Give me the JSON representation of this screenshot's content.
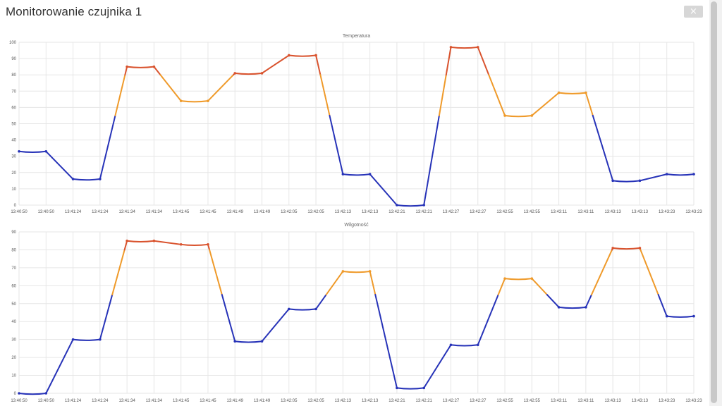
{
  "window": {
    "title": "Monitorowanie czujnika 1",
    "close_label": "×"
  },
  "colors": {
    "low": "#2733b8",
    "mid": "#ef9a2a",
    "high": "#d9532e",
    "grid": "#e6e6e6"
  },
  "chart_data": [
    {
      "type": "line",
      "title": "Temperatura",
      "ylim": [
        0,
        100
      ],
      "yticks": [
        0,
        10,
        20,
        30,
        40,
        50,
        60,
        70,
        80,
        90,
        100
      ],
      "grid": true,
      "categories": [
        "13:40:50",
        "13:40:50",
        "13:41:24",
        "13:41:24",
        "13:41:34",
        "13:41:34",
        "13:41:45",
        "13:41:45",
        "13:41:49",
        "13:41:49",
        "13:42:05",
        "13:42:05",
        "13:42:13",
        "13:42:13",
        "13:42:21",
        "13:42:21",
        "13:42:27",
        "13:42:27",
        "13:42:55",
        "13:42:55",
        "13:43:11",
        "13:43:11",
        "13:43:13",
        "13:43:13",
        "13:43:23",
        "13:43:23"
      ],
      "values": [
        33,
        33,
        16,
        16,
        85,
        85,
        64,
        64,
        81,
        81,
        92,
        92,
        19,
        19,
        0,
        0,
        97,
        97,
        55,
        55,
        69,
        69,
        15,
        15,
        19,
        19
      ]
    },
    {
      "type": "line",
      "title": "Wilgotność",
      "ylim": [
        0,
        90
      ],
      "yticks": [
        0,
        10,
        20,
        30,
        40,
        50,
        60,
        70,
        80,
        90
      ],
      "grid": true,
      "categories": [
        "13:40:50",
        "13:40:50",
        "13:41:24",
        "13:41:24",
        "13:41:34",
        "13:41:34",
        "13:41:45",
        "13:41:45",
        "13:41:49",
        "13:41:49",
        "13:42:05",
        "13:42:05",
        "13:42:13",
        "13:42:13",
        "13:42:21",
        "13:42:21",
        "13:42:27",
        "13:42:27",
        "13:42:55",
        "13:42:55",
        "13:43:11",
        "13:43:11",
        "13:43:13",
        "13:43:13",
        "13:43:23",
        "13:43:23"
      ],
      "values": [
        0,
        0,
        30,
        30,
        85,
        85,
        83,
        83,
        29,
        29,
        47,
        47,
        68,
        68,
        3,
        3,
        27,
        27,
        64,
        64,
        48,
        48,
        81,
        81,
        43,
        43
      ]
    }
  ]
}
